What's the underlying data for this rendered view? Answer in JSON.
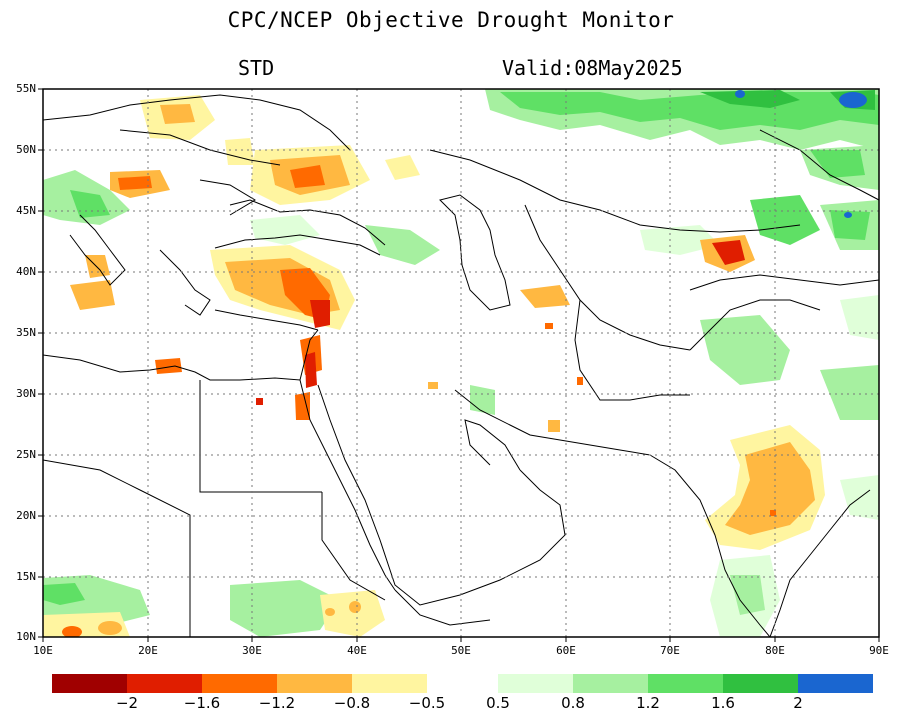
{
  "header": {
    "title": "CPC/NCEP Objective Drought Monitor",
    "variable": "STD",
    "valid": "Valid:08May2025"
  },
  "axes": {
    "lat_labels": [
      "55N",
      "50N",
      "45N",
      "40N",
      "35N",
      "30N",
      "25N",
      "20N",
      "15N",
      "10N"
    ],
    "lon_labels": [
      "10E",
      "20E",
      "30E",
      "40E",
      "50E",
      "60E",
      "70E",
      "80E",
      "90E"
    ]
  },
  "colorbar": {
    "negative_colors": [
      "#a00000",
      "#e01e00",
      "#ff6a00",
      "#ffb841",
      "#fff5a0"
    ],
    "positive_colors": [
      "#e0ffd9",
      "#a6f0a0",
      "#5fe065",
      "#30c040",
      "#1a66d0"
    ],
    "negative_labels": [
      "−2",
      "−1.6",
      "−1.2",
      "−0.8",
      "−0.5"
    ],
    "positive_labels": [
      "0.5",
      "0.8",
      "1.2",
      "1.6",
      "2"
    ]
  },
  "map": {
    "lon_range": [
      10,
      90
    ],
    "lat_range": [
      10,
      55
    ],
    "grid": "dotted"
  }
}
